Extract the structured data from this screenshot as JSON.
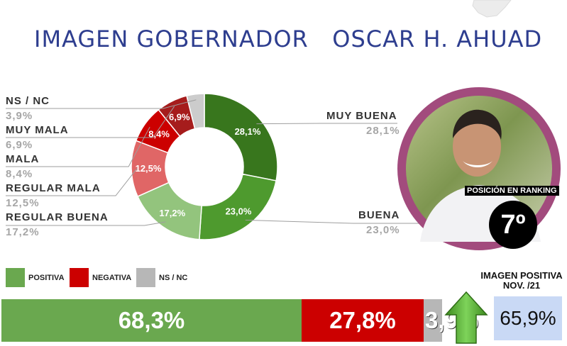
{
  "title": "IMAGEN GOBERNADOR   OSCAR H. AHUAD",
  "colors": {
    "title": "#2e3e8f",
    "positive": "#6aa84f",
    "negative": "#cc0000",
    "nsnc": "#b7b7b7"
  },
  "chart_data": [
    {
      "type": "pie",
      "variant": "donut",
      "categories": [
        "MUY BUENA",
        "BUENA",
        "REGULAR BUENA",
        "REGULAR MALA",
        "MALA",
        "MUY MALA",
        "NS / NC"
      ],
      "values": [
        28.1,
        23.0,
        17.2,
        12.5,
        8.4,
        6.9,
        3.9
      ],
      "labels": [
        "28,1%",
        "23,0%",
        "17,2%",
        "12,5%",
        "8,4%",
        "6,9%",
        "3,9%"
      ],
      "colors": [
        "#38761d",
        "#4e9a2e",
        "#93c47d",
        "#e06666",
        "#cc0000",
        "#a61c1c",
        "#cccccc"
      ]
    },
    {
      "type": "bar",
      "orientation": "horizontal-stacked",
      "categories": [
        "POSITIVA",
        "NEGATIVA",
        "NS / NC"
      ],
      "values": [
        68.3,
        27.8,
        3.9
      ],
      "labels": [
        "68,3%",
        "27,8%",
        "3,9%"
      ],
      "colors": [
        "#6aa84f",
        "#cc0000",
        "#b7b7b7"
      ]
    }
  ],
  "side_labels": {
    "left": [
      {
        "name": "NS / NC",
        "value": "3,9%"
      },
      {
        "name": "MUY MALA",
        "value": "6,9%"
      },
      {
        "name": "MALA",
        "value": "8,4%"
      },
      {
        "name": "REGULAR MALA",
        "value": "12,5%"
      },
      {
        "name": "REGULAR BUENA",
        "value": "17,2%"
      }
    ],
    "right": [
      {
        "name": "MUY BUENA",
        "value": "28,1%"
      },
      {
        "name": "BUENA",
        "value": "23,0%"
      }
    ]
  },
  "legend": [
    {
      "label": "POSITIVA",
      "color": "#6aa84f"
    },
    {
      "label": "NEGATIVA",
      "color": "#cc0000"
    },
    {
      "label": "NS / NC",
      "color": "#b7b7b7"
    }
  ],
  "ranking": {
    "tag": "POSICIÓN EN RANKING",
    "value": "7º"
  },
  "positive_image": {
    "title": "IMAGEN POSITIVA NOV. /21",
    "value": "65,9%",
    "trend": "up-arrow-icon"
  }
}
